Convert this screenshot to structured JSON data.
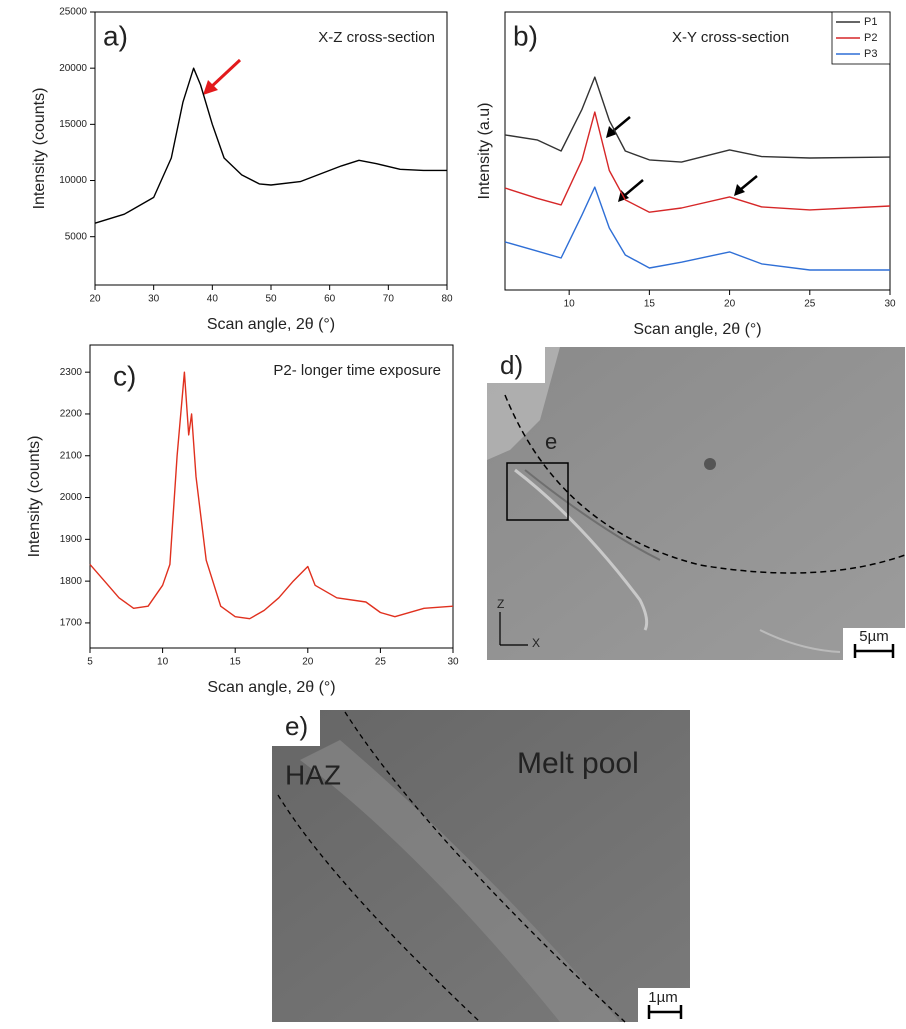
{
  "chart_data": [
    {
      "type": "line",
      "panel_label": "a)",
      "annotation": "X-Z cross-section",
      "xlabel": "Scan angle, 2θ (°)",
      "ylabel": "Intensity (counts)",
      "xlim": [
        20,
        80
      ],
      "ylim": [
        700,
        25000
      ],
      "xticks": [
        20,
        30,
        40,
        50,
        60,
        70,
        80
      ],
      "yticks": [
        5000,
        10000,
        15000,
        20000,
        25000
      ],
      "x": [
        20,
        25,
        30,
        33,
        35,
        36.8,
        38,
        40,
        42,
        45,
        48,
        50,
        55,
        58,
        62,
        65,
        68,
        72,
        76,
        80
      ],
      "series": [
        {
          "name": null,
          "color": "#000000",
          "values": [
            6200,
            7000,
            8500,
            12000,
            17000,
            20000,
            18500,
            15000,
            12000,
            10500,
            9700,
            9600,
            9900,
            10500,
            11300,
            11800,
            11500,
            11000,
            10900,
            10900
          ]
        }
      ]
    },
    {
      "type": "line",
      "panel_label": "b)",
      "annotation": "X-Y cross-section",
      "xlabel": "Scan angle, 2θ (°)",
      "ylabel": "Intensity (a.u)",
      "xlim": [
        6,
        30
      ],
      "ylim": [
        0,
        100
      ],
      "xticks": [
        10,
        15,
        20,
        25,
        30
      ],
      "legend": "upper right",
      "x": [
        6,
        8,
        9.5,
        10.8,
        11.6,
        12.5,
        13.5,
        15,
        17,
        20,
        22,
        25,
        30
      ],
      "series": [
        {
          "name": "P1",
          "color": "#333333",
          "values": [
            55.8,
            54,
            50,
            65,
            76.6,
            61,
            50,
            46.8,
            46,
            50.4,
            48,
            47.5,
            47.8
          ]
        },
        {
          "name": "P2",
          "color": "#d62728",
          "values": [
            36.7,
            33,
            30.6,
            46.8,
            64,
            43,
            32.4,
            28,
            29.5,
            33.5,
            29.9,
            28.8,
            30.2
          ]
        },
        {
          "name": "P3",
          "color": "#2f6fd6",
          "values": [
            17.3,
            14,
            11.5,
            27,
            37,
            22.3,
            12.6,
            7.9,
            10,
            13.7,
            9.4,
            7.2,
            7.2
          ]
        }
      ]
    },
    {
      "type": "line",
      "panel_label": "c)",
      "annotation": "P2- longer time exposure",
      "xlabel": "Scan angle, 2θ (°)",
      "ylabel": "Intensity (counts)",
      "xlim": [
        5,
        30
      ],
      "ylim": [
        1640,
        2365
      ],
      "xticks": [
        5,
        10,
        15,
        20,
        25,
        30
      ],
      "yticks": [
        1700,
        1800,
        1900,
        2000,
        2100,
        2200,
        2300
      ],
      "x": [
        5,
        6,
        7,
        8,
        9,
        10,
        10.5,
        11,
        11.5,
        11.8,
        12,
        12.3,
        13,
        14,
        15,
        16,
        17,
        18,
        19,
        20,
        20.5,
        22,
        24,
        25,
        26,
        28,
        30
      ],
      "series": [
        {
          "name": null,
          "color": "#e0301e",
          "values": [
            1840,
            1800,
            1760,
            1735,
            1740,
            1790,
            1840,
            2100,
            2300,
            2150,
            2200,
            2050,
            1850,
            1740,
            1715,
            1710,
            1730,
            1760,
            1800,
            1835,
            1790,
            1760,
            1750,
            1725,
            1715,
            1735,
            1740
          ]
        }
      ]
    }
  ],
  "micrographs": {
    "d": {
      "label": "d)",
      "inset_label": "e",
      "axis_z": "Z",
      "axis_x": "X",
      "scale_bar": "5µm"
    },
    "e": {
      "label": "e)",
      "region_left": "HAZ",
      "region_right": "Melt pool",
      "scale_bar": "1µm"
    }
  }
}
